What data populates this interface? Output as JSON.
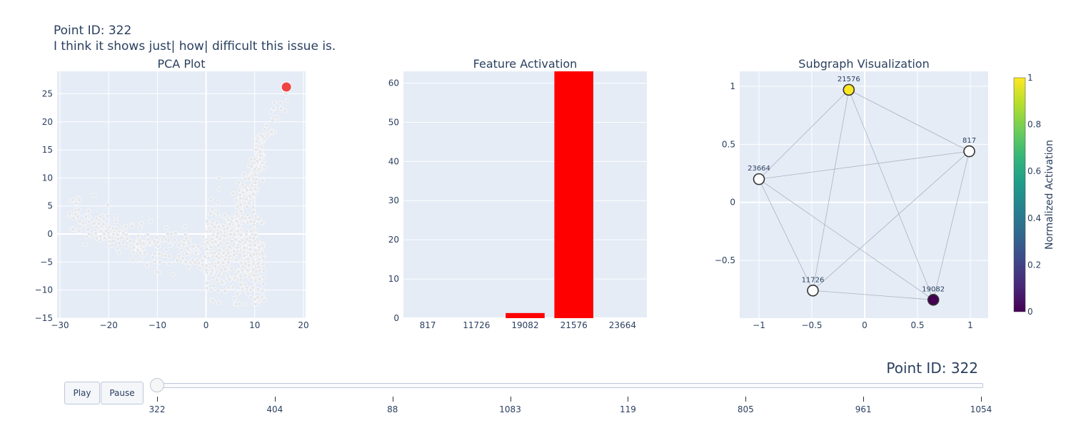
{
  "header": {
    "line1": "Point ID: 322",
    "line2": "I think it shows just| how| difficult this issue is."
  },
  "controls": {
    "play_label": "Play",
    "pause_label": "Pause",
    "current_label": "Point ID: 322",
    "slider_steps": [
      "322",
      "404",
      "88",
      "1083",
      "119",
      "805",
      "961",
      "1054"
    ],
    "slider_value_index": 0
  },
  "colors": {
    "plot_bg": "#e5ecf6",
    "grid": "#ffffff",
    "highlight_point": "#ef4444",
    "background_point": "#e5e7eb",
    "bar": "#ff0000",
    "edge": "#a9b3c1",
    "text": "#2a3f5f"
  },
  "chart_data": [
    {
      "type": "scatter",
      "title": "PCA Plot",
      "xlabel": "",
      "ylabel": "",
      "xlim": [
        -30,
        20
      ],
      "ylim": [
        -15,
        29
      ],
      "xticks": [
        -30,
        -20,
        -10,
        0,
        10,
        20
      ],
      "yticks": [
        -15,
        -10,
        -5,
        0,
        5,
        10,
        15,
        20,
        25
      ],
      "grid": true,
      "highlight": {
        "id": "322",
        "x": 16.5,
        "y": 26.2,
        "color": "#ef4444"
      },
      "point_cloud": [
        {
          "x_range": [
            -28,
            -12
          ],
          "y_base": [
            3.5,
            -2.5
          ],
          "spread": 1.6,
          "count": 140
        },
        {
          "x_range": [
            -12,
            0
          ],
          "y_base": [
            -1,
            -4
          ],
          "spread": 2.2,
          "count": 90
        },
        {
          "x_range": [
            0,
            12
          ],
          "y_base": [
            -2,
            -5
          ],
          "spread": 4,
          "count": 420
        },
        {
          "x_range": [
            6,
            12
          ],
          "y_base": [
            3,
            14
          ],
          "spread": 2.5,
          "count": 150
        },
        {
          "x_range": [
            10,
            17
          ],
          "y_base": [
            14,
            25
          ],
          "spread": 1.8,
          "count": 30
        }
      ]
    },
    {
      "type": "bar",
      "title": "Feature Activation",
      "categories": [
        "817",
        "11726",
        "19082",
        "21576",
        "23664"
      ],
      "values": [
        0,
        0,
        1.3,
        63,
        0
      ],
      "xlabel": "",
      "ylabel": "",
      "ylim": [
        0,
        63
      ],
      "yticks": [
        0,
        10,
        20,
        30,
        40,
        50,
        60
      ],
      "grid": true
    },
    {
      "type": "scatter",
      "title": "Subgraph Visualization",
      "xlabel": "",
      "ylabel": "",
      "xlim": [
        -1.15,
        1.15
      ],
      "ylim": [
        -0.99,
        1.13
      ],
      "xticks": [
        -1,
        -0.5,
        0,
        0.5,
        1
      ],
      "xtick_labels": [
        "−1",
        "−0.5",
        "0",
        "0.5",
        "1"
      ],
      "yticks": [
        -0.5,
        0,
        0.5,
        1
      ],
      "ytick_labels": [
        "−0.5",
        "0",
        "0.5",
        "1"
      ],
      "grid": true,
      "nodes": [
        {
          "id": "21576",
          "x": -0.15,
          "y": 0.97,
          "activation": 1
        },
        {
          "id": "817",
          "x": 0.99,
          "y": 0.44,
          "activation": null
        },
        {
          "id": "23664",
          "x": -1.0,
          "y": 0.2,
          "activation": null
        },
        {
          "id": "11726",
          "x": -0.49,
          "y": -0.76,
          "activation": null
        },
        {
          "id": "19082",
          "x": 0.65,
          "y": -0.84,
          "activation": 0
        }
      ],
      "edges": [
        [
          "21576",
          "817"
        ],
        [
          "21576",
          "23664"
        ],
        [
          "21576",
          "11726"
        ],
        [
          "21576",
          "19082"
        ],
        [
          "817",
          "23664"
        ],
        [
          "817",
          "11726"
        ],
        [
          "817",
          "19082"
        ],
        [
          "23664",
          "11726"
        ],
        [
          "23664",
          "19082"
        ],
        [
          "11726",
          "19082"
        ]
      ],
      "colorbar": {
        "title": "Normalized Activation",
        "ticks": [
          0,
          0.2,
          0.4,
          0.6,
          0.8,
          1
        ],
        "colorscale": [
          "#440154",
          "#482878",
          "#3e4989",
          "#31688e",
          "#26828e",
          "#1f9e89",
          "#35b779",
          "#6ece58",
          "#b5de2b",
          "#fde725"
        ]
      }
    }
  ]
}
